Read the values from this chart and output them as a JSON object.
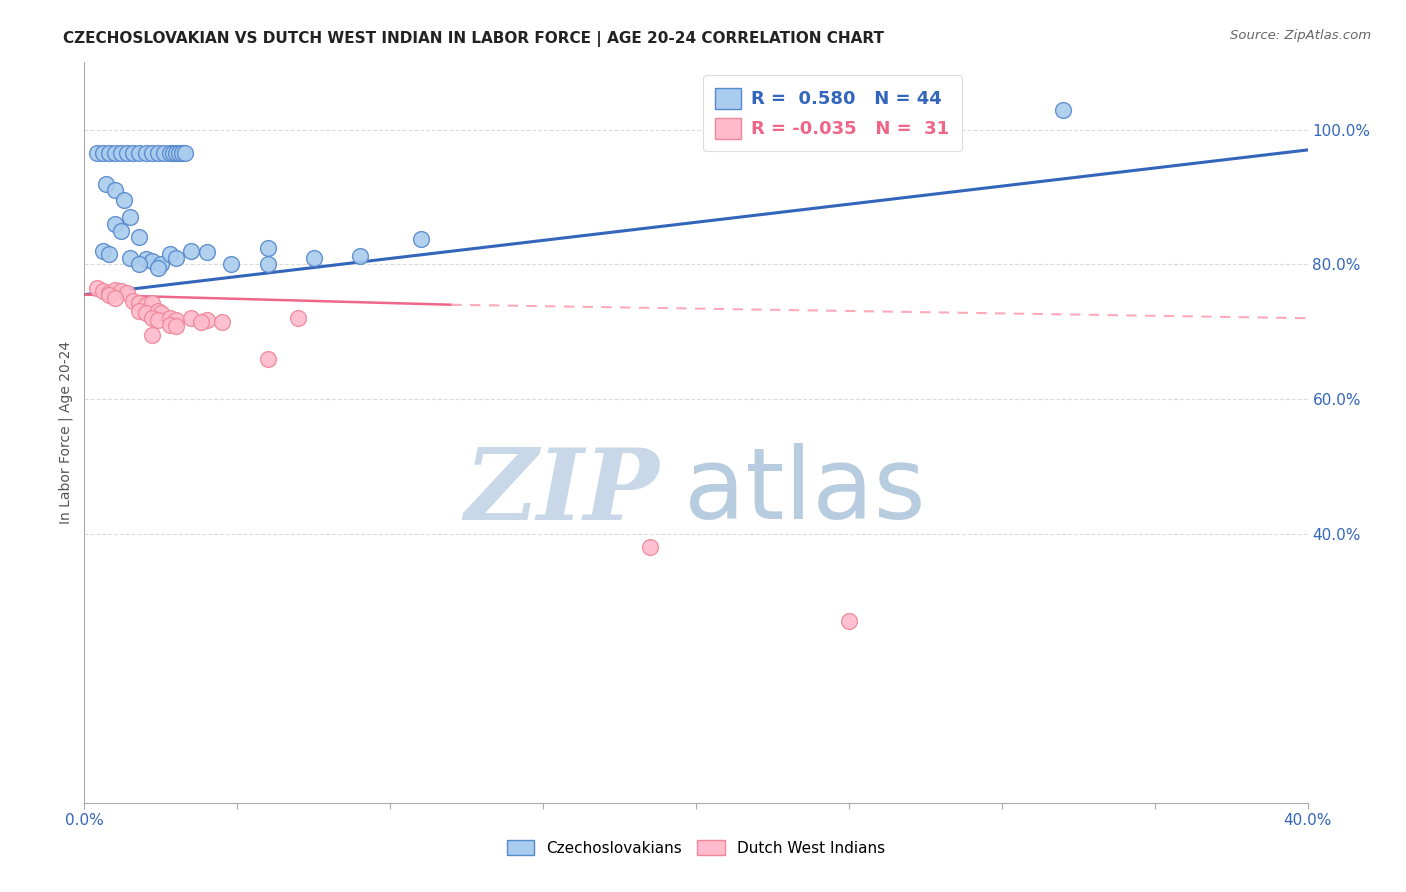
{
  "title": "CZECHOSLOVAKIAN VS DUTCH WEST INDIAN IN LABOR FORCE | AGE 20-24 CORRELATION CHART",
  "source": "Source: ZipAtlas.com",
  "ylabel": "In Labor Force | Age 20-24",
  "xlim": [
    0.0,
    0.4
  ],
  "ylim": [
    0.0,
    1.1
  ],
  "xtick_vals": [
    0.0,
    0.05,
    0.1,
    0.15,
    0.2,
    0.25,
    0.3,
    0.35,
    0.4
  ],
  "xtick_show_labels": [
    0.0,
    0.4
  ],
  "xtick_label_map": {
    "0.0": "0.0%",
    "0.4": "40.0%"
  },
  "ytick_vals_right": [
    1.0,
    0.8,
    0.6,
    0.4
  ],
  "ytick_labels_right": [
    "100.0%",
    "80.0%",
    "60.0%",
    "40.0%"
  ],
  "legend_r_blue": " 0.580",
  "legend_n_blue": "44",
  "legend_r_pink": "-0.035",
  "legend_n_pink": " 31",
  "blue_color": "#AACCEE",
  "blue_edge_color": "#5588CC",
  "pink_color": "#FFBBCC",
  "pink_edge_color": "#EE8899",
  "line_blue_color": "#3366BB",
  "line_pink_solid_color": "#EE6688",
  "line_pink_dash_color": "#FFAABB",
  "watermark_zip": "ZIP",
  "watermark_atlas": "atlas",
  "watermark_color_zip": "#C8D8E8",
  "watermark_color_atlas": "#B8CCE0",
  "background_color": "#FFFFFF",
  "grid_color": "#CCCCCC",
  "legend_box_color": "#DDDDDD",
  "blue_scatter": [
    [
      0.004,
      0.965
    ],
    [
      0.006,
      0.965
    ],
    [
      0.008,
      0.965
    ],
    [
      0.01,
      0.965
    ],
    [
      0.012,
      0.965
    ],
    [
      0.014,
      0.965
    ],
    [
      0.016,
      0.965
    ],
    [
      0.018,
      0.965
    ],
    [
      0.02,
      0.965
    ],
    [
      0.022,
      0.965
    ],
    [
      0.024,
      0.965
    ],
    [
      0.026,
      0.965
    ],
    [
      0.028,
      0.965
    ],
    [
      0.029,
      0.965
    ],
    [
      0.03,
      0.965
    ],
    [
      0.031,
      0.965
    ],
    [
      0.032,
      0.965
    ],
    [
      0.033,
      0.965
    ],
    [
      0.007,
      0.92
    ],
    [
      0.01,
      0.91
    ],
    [
      0.013,
      0.895
    ],
    [
      0.015,
      0.87
    ],
    [
      0.018,
      0.84
    ],
    [
      0.01,
      0.86
    ],
    [
      0.012,
      0.85
    ],
    [
      0.006,
      0.82
    ],
    [
      0.008,
      0.815
    ],
    [
      0.015,
      0.81
    ],
    [
      0.02,
      0.808
    ],
    [
      0.022,
      0.805
    ],
    [
      0.025,
      0.8
    ],
    [
      0.028,
      0.815
    ],
    [
      0.03,
      0.81
    ],
    [
      0.035,
      0.82
    ],
    [
      0.04,
      0.818
    ],
    [
      0.018,
      0.8
    ],
    [
      0.024,
      0.795
    ],
    [
      0.048,
      0.8
    ],
    [
      0.06,
      0.8
    ],
    [
      0.075,
      0.81
    ],
    [
      0.09,
      0.812
    ],
    [
      0.06,
      0.825
    ],
    [
      0.11,
      0.838
    ],
    [
      0.32,
      1.03
    ]
  ],
  "pink_scatter": [
    [
      0.004,
      0.765
    ],
    [
      0.006,
      0.76
    ],
    [
      0.008,
      0.758
    ],
    [
      0.01,
      0.762
    ],
    [
      0.012,
      0.76
    ],
    [
      0.014,
      0.758
    ],
    [
      0.016,
      0.745
    ],
    [
      0.018,
      0.742
    ],
    [
      0.008,
      0.755
    ],
    [
      0.01,
      0.75
    ],
    [
      0.02,
      0.74
    ],
    [
      0.022,
      0.742
    ],
    [
      0.018,
      0.73
    ],
    [
      0.02,
      0.728
    ],
    [
      0.024,
      0.73
    ],
    [
      0.025,
      0.728
    ],
    [
      0.022,
      0.72
    ],
    [
      0.024,
      0.718
    ],
    [
      0.028,
      0.72
    ],
    [
      0.03,
      0.718
    ],
    [
      0.028,
      0.71
    ],
    [
      0.03,
      0.708
    ],
    [
      0.022,
      0.695
    ],
    [
      0.035,
      0.72
    ],
    [
      0.04,
      0.718
    ],
    [
      0.045,
      0.715
    ],
    [
      0.06,
      0.66
    ],
    [
      0.038,
      0.715
    ],
    [
      0.07,
      0.72
    ],
    [
      0.185,
      0.38
    ],
    [
      0.25,
      0.27
    ]
  ],
  "blue_trendline": [
    [
      0.0,
      0.755
    ],
    [
      0.4,
      0.97
    ]
  ],
  "pink_trendline_solid": [
    [
      0.0,
      0.755
    ],
    [
      0.12,
      0.74
    ]
  ],
  "pink_trendline_dash": [
    [
      0.12,
      0.74
    ],
    [
      0.4,
      0.72
    ]
  ]
}
